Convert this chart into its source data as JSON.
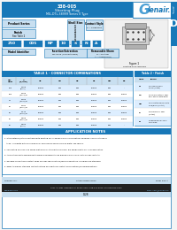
{
  "title_line1": "338-005",
  "title_line2": "Shorting Plug",
  "title_line3": "MIL-DTL-38999 Series II Type",
  "brand_G": "G",
  "brand_rest": "lenair.",
  "header_bg": "#1878b8",
  "header_text_color": "#ffffff",
  "tab_color": "#1878b8",
  "tab_text": "D",
  "body_bg": "#f4f4f4",
  "inner_bg": "#ffffff",
  "body_text_color": "#000000",
  "table1_title": "TABLE 1 - CONNECTOR COMBINATIONS",
  "table2_title": "Table 2 - Finish",
  "app_notes_title": "APPLICATION NOTES",
  "footer_company": "Glenair, Inc.",
  "footer_cage": "CAGE CODE 06324",
  "footer_form": "Form 421-A",
  "footer_addr": "1211 Air Way  Glendale, CA 91201-2497  818-247-6000  FAX 818-500-9912",
  "footer_web": "www.glenair.com",
  "footer_email": "email: sales@glenair.com",
  "page_ref": "D-28",
  "light_blue": "#c8dff0",
  "mid_blue": "#4a9fd4",
  "dark_blue": "#1878b8",
  "white": "#ffffff",
  "border_blue": "#1878b8",
  "row_alt": "#ddeeff",
  "part_nums": [
    "250",
    "005",
    "NP",
    "10",
    "S",
    "N",
    "A"
  ],
  "table1_cols": [
    "MIL\nNOM",
    "A\n(in/mm)",
    "GS",
    "MS",
    "DS",
    "BS",
    "Dm",
    "Bn"
  ],
  "table1_rows": [
    [
      "10S",
      "0.750\n(19.1)",
      "100SB",
      "Bus",
      "Bus",
      "100SB",
      "Bus",
      "-"
    ],
    [
      "12S",
      "1.000\n(25.4) B",
      "100SB",
      "Bus",
      "Bus",
      "100SB",
      "Bus",
      "100SB"
    ],
    [
      "14",
      "1.062\n(26.9) B",
      "100SB",
      "Bus",
      "Bus",
      "100SB",
      "Bus",
      "100SB"
    ],
    [
      "16",
      "1.187\n(30.1) B",
      "100SB",
      "Bus",
      "Bus",
      "100SB",
      "Bus",
      "100SB"
    ],
    [
      "18",
      "1.312\n(33.3) B",
      "100SB",
      "Bus",
      "Bus",
      "100SB",
      "Bus",
      "100SB"
    ],
    [
      "20",
      "1.500\n(38.1) B",
      "100SB",
      "Bus",
      "Bus",
      "100SB",
      "Bus",
      "100SB"
    ],
    [
      "22",
      "1.562\n(39.7)",
      "100SB",
      "Bus",
      "Bus",
      "100SB",
      "Bus",
      "-"
    ]
  ],
  "table2_rows": [
    [
      "N",
      "Mechanical Finish\nNickel (all test)"
    ],
    [
      "NP",
      "Nickel MIL-Plate per Spec\nbody and all metal parts"
    ],
    [
      "MP",
      "Qualification per MIL-Plate\nGold/Nickel (all test)"
    ],
    [
      "Z",
      "Zinc-Nickel per Spec\n(all test)"
    ],
    [
      "D",
      "Cadmium per MIL-Spec\nOlive Drab"
    ]
  ],
  "app_notes": [
    "1. Intermateable/intermountable with existing MIL-C-38999 Series II and mating hardware. Series II standard",
    "    type - complete with polarizing shell accessories and grounding plate. See Table 2.",
    "2. For mating use 250-005 series mating shell style with individual pin assignments per user application.",
    "3. Applications with demanding thermal requirements use placing Series II shell with proper contacts.",
    "4. Reliable Connections contact sales for user specifications/recommendations including non-standard.",
    "5. Refer to Glenair standard contact catalog for additional contact specifications/recommendations."
  ]
}
